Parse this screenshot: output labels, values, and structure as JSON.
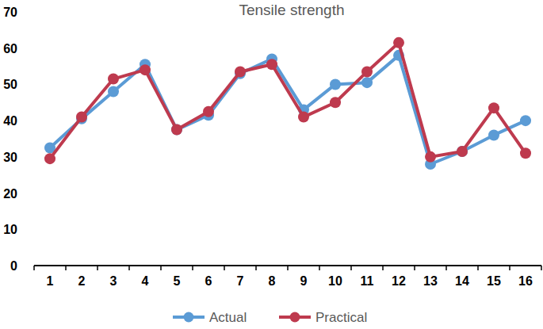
{
  "chart_data": {
    "type": "line",
    "title": "Tensile strength",
    "categories": [
      "1",
      "2",
      "3",
      "4",
      "5",
      "6",
      "7",
      "8",
      "9",
      "10",
      "11",
      "12",
      "13",
      "14",
      "15",
      "16"
    ],
    "series": [
      {
        "name": "Actual",
        "color": "#5b9bd5",
        "marker": "circle",
        "values": [
          32.5,
          40.5,
          48,
          55.5,
          37.5,
          41.5,
          53,
          57,
          43,
          50,
          50.5,
          58,
          28,
          31.5,
          36,
          40
        ]
      },
      {
        "name": "Practical",
        "color": "#be3a4e",
        "marker": "circle",
        "values": [
          29.5,
          41,
          51.5,
          54,
          37.5,
          42.5,
          53.5,
          55.5,
          41,
          45,
          53.5,
          61.5,
          30,
          31.5,
          43.5,
          31
        ]
      }
    ],
    "ylim": [
      0,
      70
    ],
    "yticks": [
      0,
      10,
      20,
      30,
      40,
      50,
      60,
      70
    ],
    "grid": false,
    "legend": "bottom"
  }
}
